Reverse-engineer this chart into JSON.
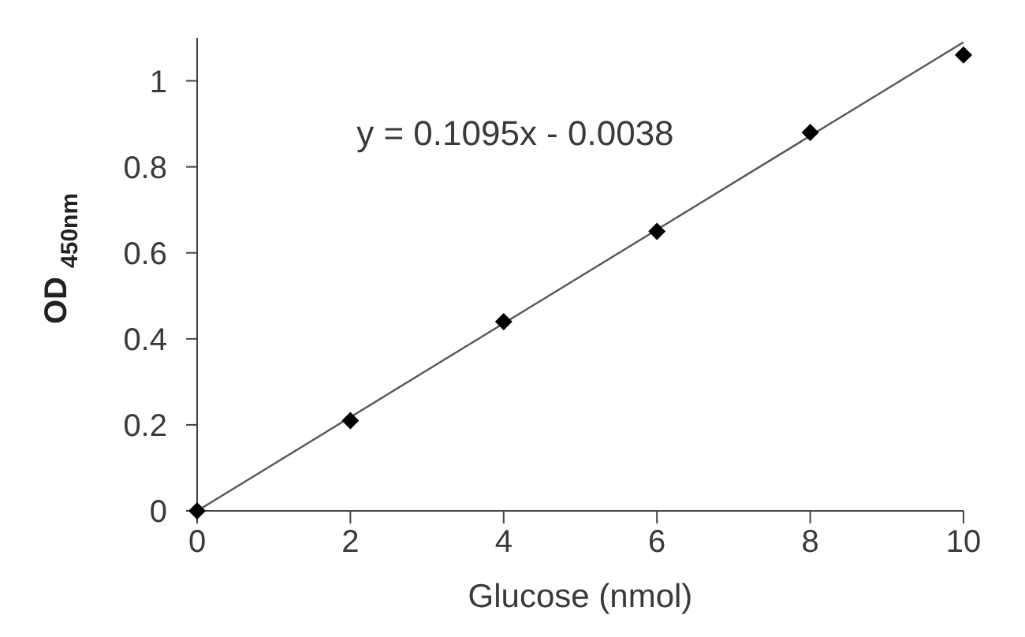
{
  "chart_data": {
    "type": "scatter",
    "xlabel": "Glucose (nmol)",
    "ylabel": "OD $_{450nm}$",
    "annotations": [
      "y = 0.1095x - 0.0038"
    ],
    "xlim": [
      0,
      10
    ],
    "xticks": [
      0,
      2,
      4,
      6,
      8,
      10
    ],
    "ylim": [
      0,
      1.1
    ],
    "yticks": [
      0,
      0.2,
      0.4,
      0.6,
      0.8,
      1
    ],
    "series": [
      {
        "color": "#000000",
        "x": [
          0,
          2,
          4,
          6,
          8,
          10
        ],
        "values": [
          0,
          0.21,
          0.44,
          0.65,
          0.88,
          1.06
        ]
      },
      {
        "type": "line",
        "color": "#555555",
        "marker": "none",
        "x": [
          0,
          10
        ],
        "values": [
          0,
          1.09
        ]
      }
    ],
    "marker": "diamond",
    "grid": false
  }
}
